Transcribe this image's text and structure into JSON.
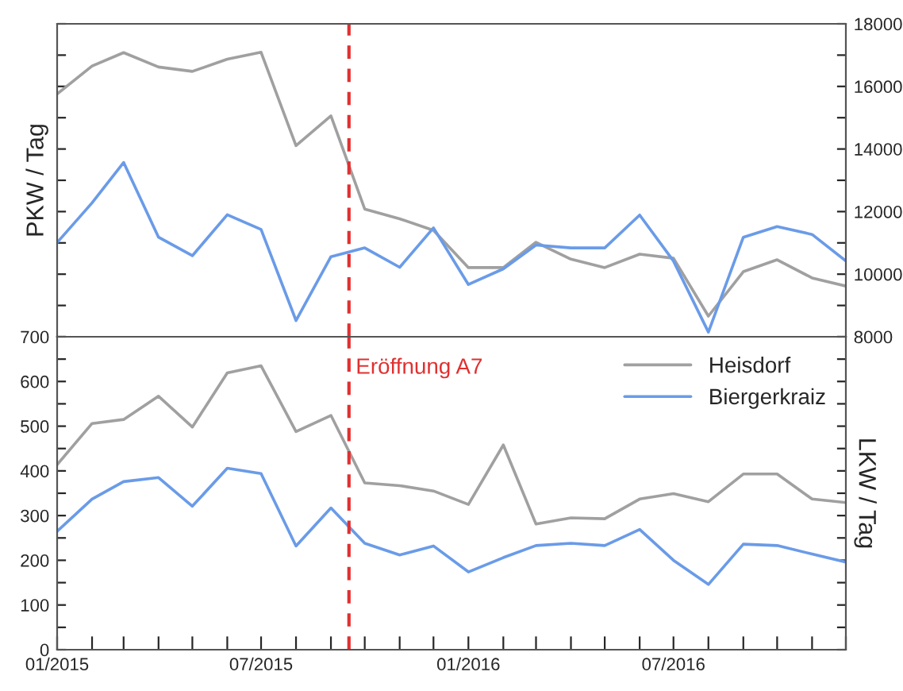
{
  "chart_data": [
    {
      "type": "line",
      "ylabel": "PKW / Tag",
      "tick_labels": "y",
      "grid": false,
      "legend": false,
      "x": [
        "2015-01",
        "2015-02",
        "2015-03",
        "2015-04",
        "2015-05",
        "2015-06",
        "2015-07",
        "2015-08",
        "2015-09",
        "2015-10",
        "2015-11",
        "2015-12",
        "2016-01",
        "2016-02",
        "2016-03",
        "2016-04",
        "2016-05",
        "2016-06",
        "2016-07",
        "2016-08",
        "2016-09",
        "2016-10",
        "2016-11",
        "2016-12"
      ],
      "series": [
        {
          "color": "#a0a0a0",
          "values": [
            15760,
            16650,
            17080,
            16620,
            16480,
            16870,
            17090,
            14110,
            15060,
            12080,
            11770,
            11400,
            10210,
            10210,
            11020,
            10480,
            10210,
            10640,
            10510,
            8660,
            10080,
            10460,
            9880,
            9620
          ]
        },
        {
          "color": "#6a9be8",
          "values": [
            11010,
            12280,
            13570,
            11180,
            10590,
            11900,
            11430,
            8520,
            10560,
            10840,
            10220,
            11480,
            9670,
            10170,
            10930,
            10840,
            10840,
            11890,
            10420,
            8150,
            11180,
            11520,
            11270,
            10420
          ]
        }
      ],
      "xlim": [
        "2015-01",
        "2016-12"
      ],
      "ylim": [
        8000,
        18000
      ],
      "yticks": [
        8000,
        {
          "value": 9000,
          "label": null
        },
        10000,
        {
          "value": 11000,
          "label": null
        },
        12000,
        {
          "value": 13000,
          "label": null
        },
        14000,
        {
          "value": 15000,
          "label": null
        },
        16000,
        {
          "value": 17000,
          "label": null
        },
        18000
      ],
      "ref_lines": [
        {
          "axis": "x",
          "value": "2015-09-17",
          "color": "#e03030",
          "line_style": "dashed"
        }
      ]
    },
    {
      "type": "line",
      "ylabel": "LKW / Tag",
      "grid": false,
      "legend": "top right",
      "x": [
        "2015-01",
        "2015-02",
        "2015-03",
        "2015-04",
        "2015-05",
        "2015-06",
        "2015-07",
        "2015-08",
        "2015-09",
        "2015-10",
        "2015-11",
        "2015-12",
        "2016-01",
        "2016-02",
        "2016-03",
        "2016-04",
        "2016-05",
        "2016-06",
        "2016-07",
        "2016-08",
        "2016-09",
        "2016-10",
        "2016-11",
        "2016-12"
      ],
      "series": [
        {
          "name": "Heisdorf",
          "color": "#a0a0a0",
          "values": [
            414,
            506,
            515,
            567,
            498,
            619,
            635,
            488,
            524,
            373,
            367,
            355,
            325,
            458,
            281,
            295,
            293,
            337,
            349,
            331,
            393,
            393,
            337,
            329
          ]
        },
        {
          "name": "Biergerkraiz",
          "color": "#6a9be8",
          "values": [
            265,
            337,
            376,
            385,
            321,
            406,
            394,
            232,
            317,
            238,
            212,
            232,
            174,
            206,
            233,
            238,
            233,
            269,
            200,
            146,
            236,
            233,
            214,
            196
          ]
        }
      ],
      "xlim": [
        "2015-01",
        "2016-12"
      ],
      "xticks": [
        {
          "value": "2015-01",
          "label": "01/2015"
        },
        {
          "value": "2015-02",
          "label": null
        },
        {
          "value": "2015-03",
          "label": null
        },
        {
          "value": "2015-04",
          "label": null
        },
        {
          "value": "2015-05",
          "label": null
        },
        {
          "value": "2015-06",
          "label": null
        },
        {
          "value": "2015-07",
          "label": "07/2015"
        },
        {
          "value": "2015-08",
          "label": null
        },
        {
          "value": "2015-09",
          "label": null
        },
        {
          "value": "2015-10",
          "label": null
        },
        {
          "value": "2015-11",
          "label": null
        },
        {
          "value": "2015-12",
          "label": null
        },
        {
          "value": "2016-01",
          "label": "01/2016"
        },
        {
          "value": "2016-02",
          "label": null
        },
        {
          "value": "2016-03",
          "label": null
        },
        {
          "value": "2016-04",
          "label": null
        },
        {
          "value": "2016-05",
          "label": null
        },
        {
          "value": "2016-06",
          "label": null
        },
        {
          "value": "2016-07",
          "label": "07/2016"
        },
        {
          "value": "2016-08",
          "label": null
        },
        {
          "value": "2016-09",
          "label": null
        },
        {
          "value": "2016-10",
          "label": null
        },
        {
          "value": "2016-11",
          "label": null
        },
        {
          "value": "2016-12",
          "label": null
        }
      ],
      "ylim": [
        0,
        700
      ],
      "yticks": [
        0,
        {
          "value": 50,
          "label": null
        },
        100,
        {
          "value": 150,
          "label": null
        },
        200,
        {
          "value": 250,
          "label": null
        },
        300,
        {
          "value": 350,
          "label": null
        },
        400,
        {
          "value": 450,
          "label": null
        },
        500,
        {
          "value": 550,
          "label": null
        },
        600,
        {
          "value": 650,
          "label": null
        },
        700
      ],
      "ref_lines": [
        {
          "axis": "x",
          "value": "2015-09-17",
          "label": "Eröffnung A7",
          "color": "#e03030",
          "line_style": "dashed"
        }
      ]
    }
  ]
}
